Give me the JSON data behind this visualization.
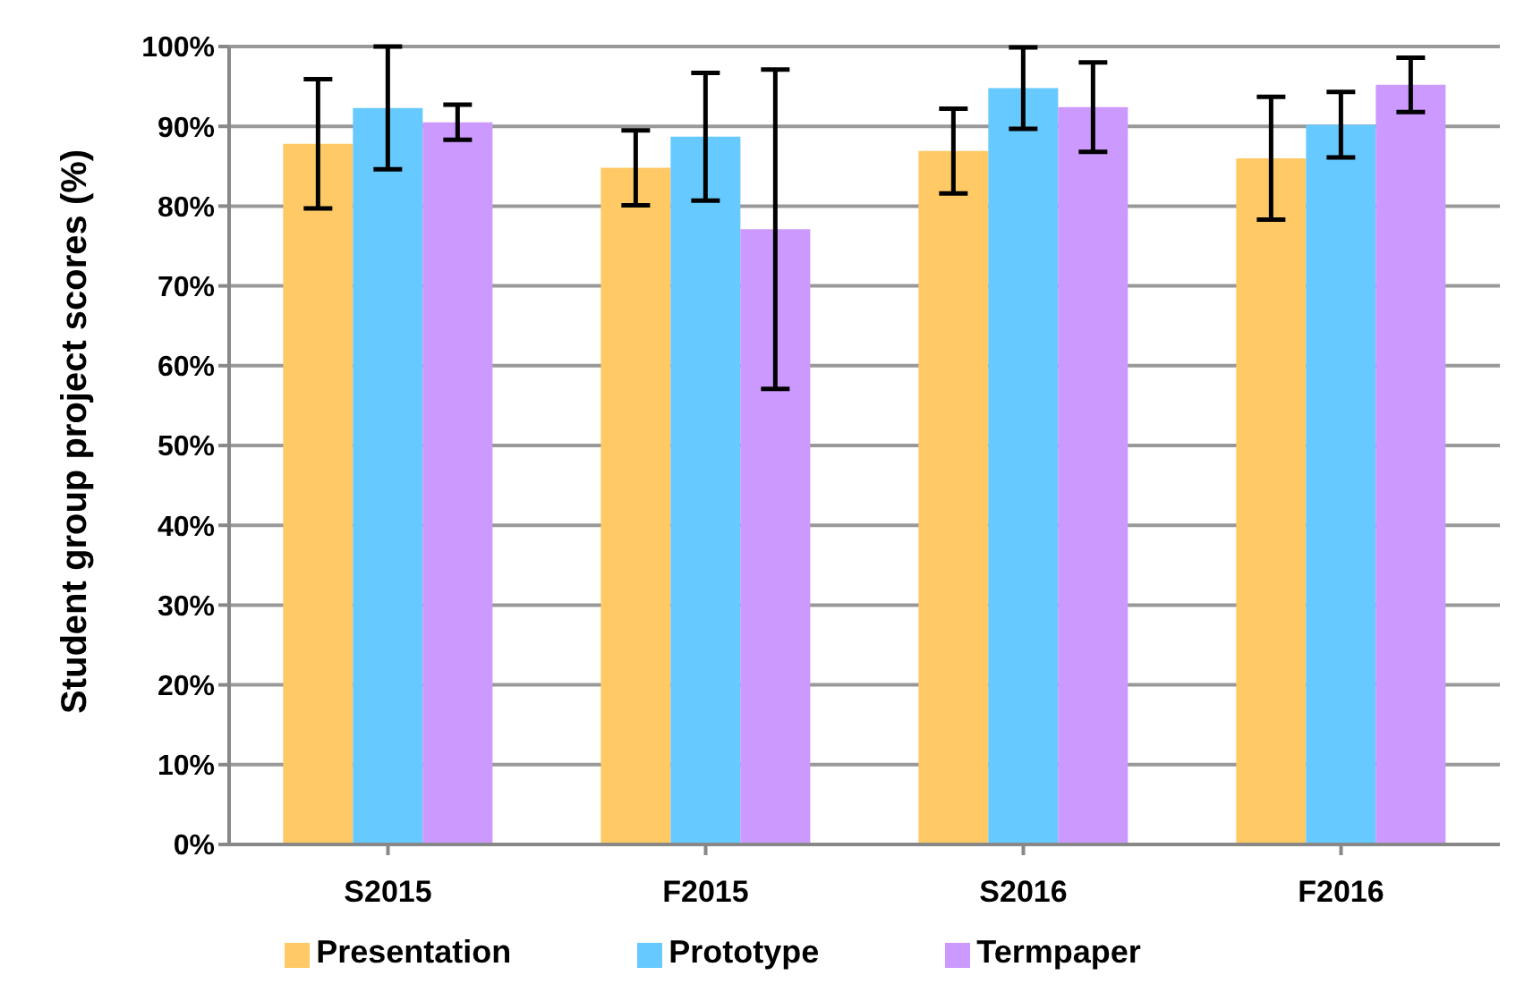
{
  "chart_data": {
    "type": "bar",
    "ylabel": "Student group project scores (%)",
    "categories": [
      "S2015",
      "F2015",
      "S2016",
      "F2016"
    ],
    "series": [
      {
        "name": "Presentation",
        "color": "#ffc966",
        "values": [
          87.8,
          84.8,
          86.9,
          86.0
        ],
        "errors": [
          8.1,
          4.7,
          5.3,
          7.7
        ]
      },
      {
        "name": "Prototype",
        "color": "#66c9ff",
        "values": [
          92.3,
          88.7,
          94.8,
          90.2
        ],
        "errors": [
          7.7,
          8.0,
          5.1,
          4.1
        ]
      },
      {
        "name": "Termpaper",
        "color": "#cc99ff",
        "values": [
          90.5,
          77.1,
          92.4,
          95.2
        ],
        "errors": [
          2.2,
          20,
          5.6,
          3.4
        ]
      }
    ],
    "ylim": [
      0,
      100
    ],
    "yticks": [
      {
        "value": 0,
        "label": "0%"
      },
      {
        "value": 10,
        "label": "10%"
      },
      {
        "value": 20,
        "label": "20%"
      },
      {
        "value": 30,
        "label": "30%"
      },
      {
        "value": 40,
        "label": "40%"
      },
      {
        "value": 50,
        "label": "50%"
      },
      {
        "value": 60,
        "label": "60%"
      },
      {
        "value": 70,
        "label": "70%"
      },
      {
        "value": 80,
        "label": "80%"
      },
      {
        "value": 90,
        "label": "90%"
      },
      {
        "value": 100,
        "label": "100%"
      }
    ],
    "grid": "y",
    "legend": "bottom"
  }
}
